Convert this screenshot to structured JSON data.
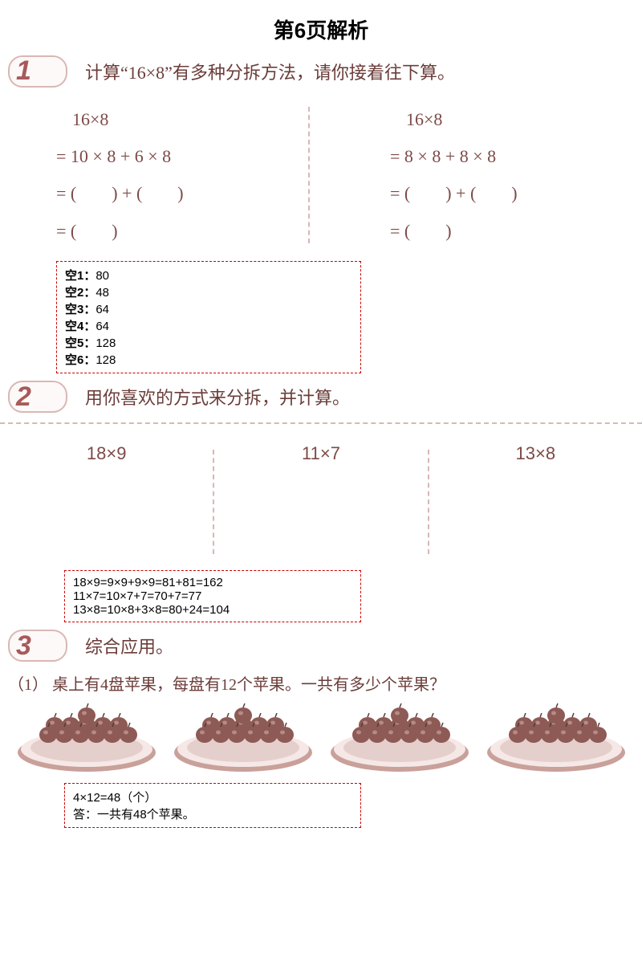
{
  "title": "第6页解析",
  "colors": {
    "ink": "#6b3d3a",
    "num": "#a85a5a",
    "dash": "#d8b8b4",
    "answer_border": "#cc0000",
    "apple_fill": "#8d5a56",
    "apple_shine": "#b88a86",
    "plate_rim": "#c9a09a",
    "plate_fill": "#f5e8e6"
  },
  "q1": {
    "num": "1",
    "text": "计算“16×8”有多种分拆方法，请你接着往下算。",
    "left": {
      "l1": "16×8",
      "l2": "= 10 × 8 + 6 × 8",
      "l3": "= (  ) + (  )",
      "l4": "= (  )"
    },
    "right": {
      "l1": "16×8",
      "l2": "= 8 × 8 + 8 × 8",
      "l3": "= (  ) + (  )",
      "l4": "= (  )"
    },
    "answers": [
      {
        "label": "空1：",
        "val": "80"
      },
      {
        "label": "空2：",
        "val": "48"
      },
      {
        "label": "空3：",
        "val": "64"
      },
      {
        "label": "空4：",
        "val": "64"
      },
      {
        "label": "空5：",
        "val": "128"
      },
      {
        "label": "空6：",
        "val": "128"
      }
    ]
  },
  "q2": {
    "num": "2",
    "text": "用你喜欢的方式来分拆，并计算。",
    "cols": [
      "18×9",
      "11×7",
      "13×8"
    ],
    "answers": [
      "18×9=9×9+9×9=81+81=162",
      "11×7=10×7+7=70+7=77",
      "13×8=10×8+3×8=80+24=104"
    ]
  },
  "q3": {
    "num": "3",
    "text": "综合应用。",
    "sub": "（1） 桌上有4盘苹果，每盘有12个苹果。一共有多少个苹果？",
    "plate_count": 4,
    "answers": [
      "4×12=48（个）",
      "答：一共有48个苹果。"
    ]
  }
}
